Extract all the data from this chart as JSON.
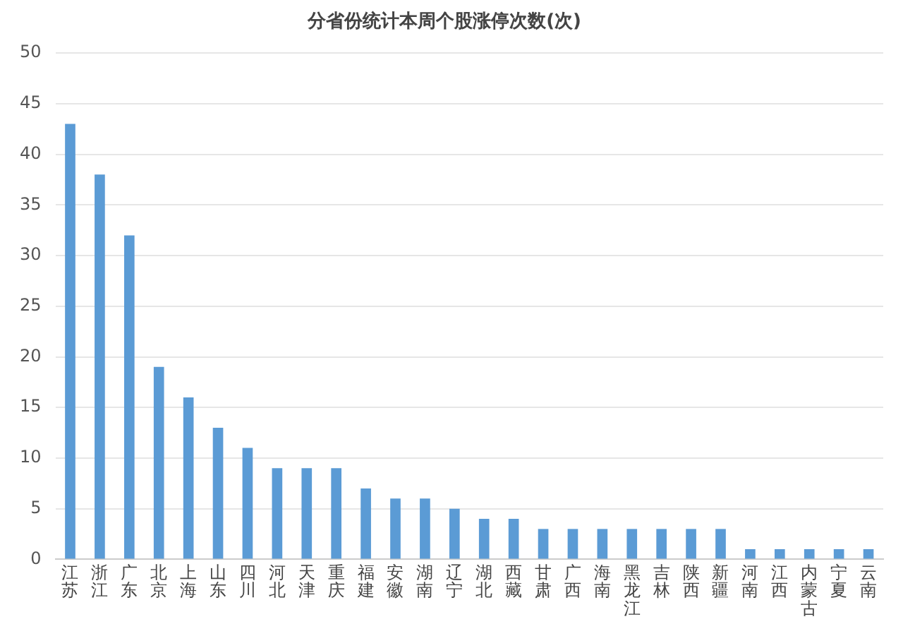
{
  "chart_data": {
    "type": "bar",
    "title": "分省份统计本周个股涨停次数(次)",
    "categories": [
      "江苏",
      "浙江",
      "广东",
      "北京",
      "上海",
      "山东",
      "四川",
      "河北",
      "天津",
      "重庆",
      "福建",
      "安徽",
      "湖南",
      "辽宁",
      "湖北",
      "西藏",
      "甘肃",
      "广西",
      "海南",
      "黑龙江",
      "吉林",
      "陕西",
      "新疆",
      "河南",
      "江西",
      "内蒙古",
      "宁夏",
      "云南"
    ],
    "values": [
      43,
      38,
      32,
      19,
      16,
      13,
      11,
      9,
      9,
      9,
      7,
      6,
      6,
      5,
      4,
      4,
      3,
      3,
      3,
      3,
      3,
      3,
      3,
      1,
      1,
      1,
      1,
      1
    ],
    "color": "#5b9bd5",
    "ylim": [
      0,
      50
    ],
    "yticks": [
      0,
      5,
      10,
      15,
      20,
      25,
      30,
      35,
      40,
      45,
      50
    ],
    "grid": "y"
  }
}
